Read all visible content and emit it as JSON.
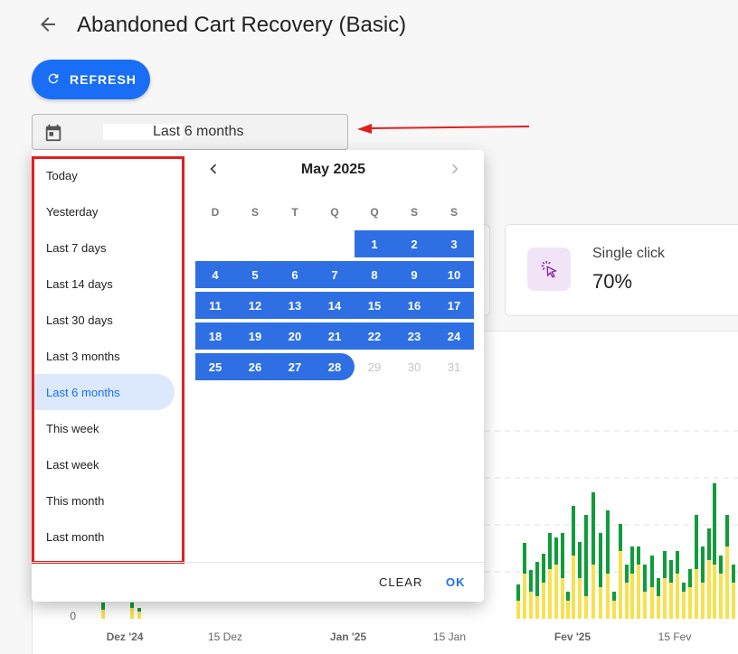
{
  "page": {
    "title": "Abandoned Cart Recovery (Basic)"
  },
  "toolbar": {
    "refresh_label": "REFRESH"
  },
  "date_field": {
    "value": "Last 6 months"
  },
  "stat_card": {
    "label": "Single click",
    "value": "70%",
    "icon": "pointer-click-icon"
  },
  "chart": {
    "y_zero": "0",
    "x_ticks": [
      "Dez '24",
      "15 Dez",
      "Jan '25",
      "15 Jan",
      "Fev '25",
      "15 Fev"
    ],
    "series_colors": {
      "primary": "#f7e14d",
      "secondary": "#0f9d3a"
    }
  },
  "presets": [
    "Today",
    "Yesterday",
    "Last 7 days",
    "Last 14 days",
    "Last 30 days",
    "Last 3 months",
    "Last 6 months",
    "This week",
    "Last week",
    "This month",
    "Last month"
  ],
  "selected_preset": "Last 6 months",
  "calendar": {
    "month_label": "May 2025",
    "weekdays": [
      "D",
      "S",
      "T",
      "Q",
      "Q",
      "S",
      "S"
    ],
    "first_weekday": 4,
    "days_in_month": 31,
    "range_end": 28
  },
  "footer": {
    "clear_label": "CLEAR",
    "ok_label": "OK"
  },
  "colors": {
    "accent": "#1a6ef5",
    "range": "#2f6fe4",
    "annotation": "#e02020"
  }
}
